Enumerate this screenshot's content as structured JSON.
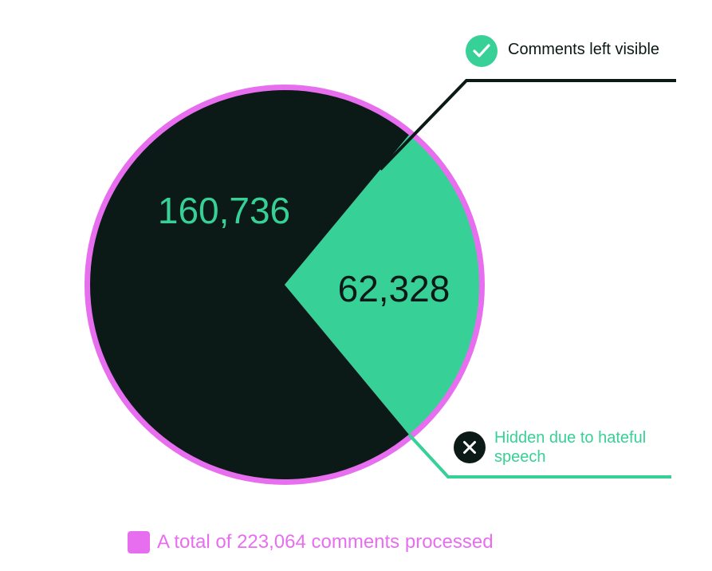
{
  "chart_data": {
    "type": "pie",
    "slices": [
      {
        "label": "Comments left visible",
        "value": 160736,
        "value_text": "160,736",
        "color": "#0b1917",
        "value_text_color": "#37d096"
      },
      {
        "label": "Hidden due to hateful speech",
        "value": 62328,
        "value_text": "62,328",
        "color": "#37d096",
        "value_text_color": "#0b1917"
      }
    ],
    "total_note": "A total of 223,064 comments processed",
    "total_color": "#e86ef0",
    "legend_icons": [
      "check-icon",
      "close-icon"
    ]
  }
}
